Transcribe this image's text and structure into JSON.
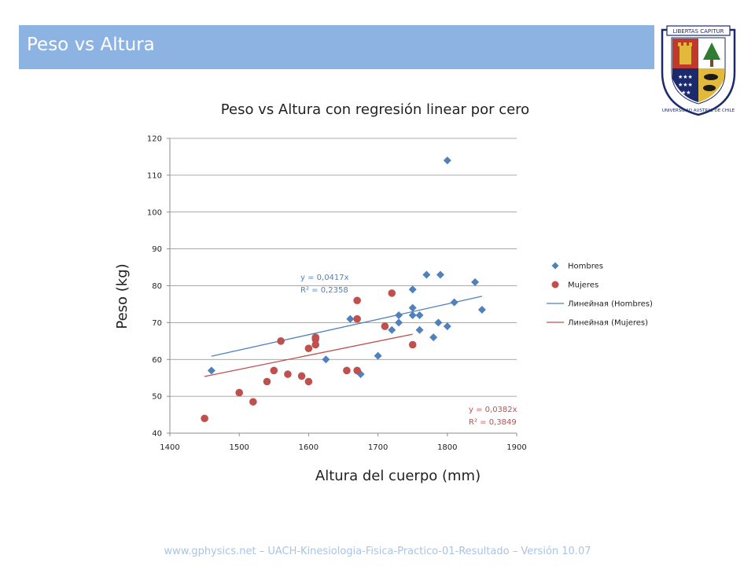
{
  "slide": {
    "title": "Peso vs Altura",
    "footer": "www.gphysics.net – UACH-Kinesiologia-Fisica-Practico-01-Resultado – Versión 10.07"
  },
  "logo": {
    "banner_text": "LIBERTAS CAPITUR",
    "ring_text": "UNIVERSIDAD AUSTRAL DE CHILE",
    "colors": {
      "red": "#c0392b",
      "navy": "#1a2a6c",
      "green": "#2e7d32",
      "gold": "#e2b93b"
    }
  },
  "chart_data": {
    "type": "scatter",
    "title": "Peso vs Altura con regresión linear por cero",
    "xlabel": "Altura del cuerpo (mm)",
    "ylabel": "Peso (kg)",
    "xlim": [
      1400,
      1900
    ],
    "ylim": [
      40,
      120
    ],
    "x_ticks": [
      "1400",
      "1500",
      "1600",
      "1700",
      "1800",
      "1900"
    ],
    "y_ticks": [
      "40",
      "50",
      "60",
      "70",
      "80",
      "90",
      "100",
      "110",
      "120"
    ],
    "grid": "horizontal",
    "legend_position": "right",
    "series": [
      {
        "name": "Hombres",
        "marker": "diamond",
        "color": "#4f81bd",
        "points": [
          [
            1460,
            57
          ],
          [
            1625,
            60
          ],
          [
            1660,
            71
          ],
          [
            1675,
            56
          ],
          [
            1700,
            61
          ],
          [
            1720,
            68
          ],
          [
            1730,
            70
          ],
          [
            1730,
            72
          ],
          [
            1750,
            72
          ],
          [
            1750,
            74
          ],
          [
            1750,
            79
          ],
          [
            1760,
            68
          ],
          [
            1760,
            72
          ],
          [
            1770,
            83
          ],
          [
            1780,
            66
          ],
          [
            1787,
            70
          ],
          [
            1790,
            83
          ],
          [
            1800,
            69
          ],
          [
            1800,
            114
          ],
          [
            1810,
            75.5
          ],
          [
            1840,
            81
          ],
          [
            1850,
            73.5
          ]
        ]
      },
      {
        "name": "Mujeres",
        "marker": "circle",
        "color": "#c0504d",
        "points": [
          [
            1450,
            44
          ],
          [
            1500,
            51
          ],
          [
            1520,
            48.5
          ],
          [
            1540,
            54
          ],
          [
            1550,
            57
          ],
          [
            1560,
            65
          ],
          [
            1570,
            56
          ],
          [
            1590,
            55.5
          ],
          [
            1600,
            54
          ],
          [
            1600,
            63
          ],
          [
            1610,
            64
          ],
          [
            1610,
            65.5
          ],
          [
            1610,
            66
          ],
          [
            1655,
            57
          ],
          [
            1670,
            57
          ],
          [
            1670,
            71
          ],
          [
            1670,
            76
          ],
          [
            1710,
            69
          ],
          [
            1720,
            78
          ],
          [
            1750,
            64
          ]
        ]
      }
    ],
    "trendlines": [
      {
        "name": "Линейная (Hombres)",
        "series": "Hombres",
        "slope": 0.0417,
        "x_range": [
          1460,
          1850
        ],
        "color": "#4f81bd",
        "equation": "y = 0,0417x",
        "r2": "R² = 0,2358"
      },
      {
        "name": "Линейная (Mujeres)",
        "series": "Mujeres",
        "slope": 0.0382,
        "x_range": [
          1450,
          1750
        ],
        "color": "#c0504d",
        "equation": "y = 0,0382x",
        "r2": "R² = 0,3849"
      }
    ]
  }
}
